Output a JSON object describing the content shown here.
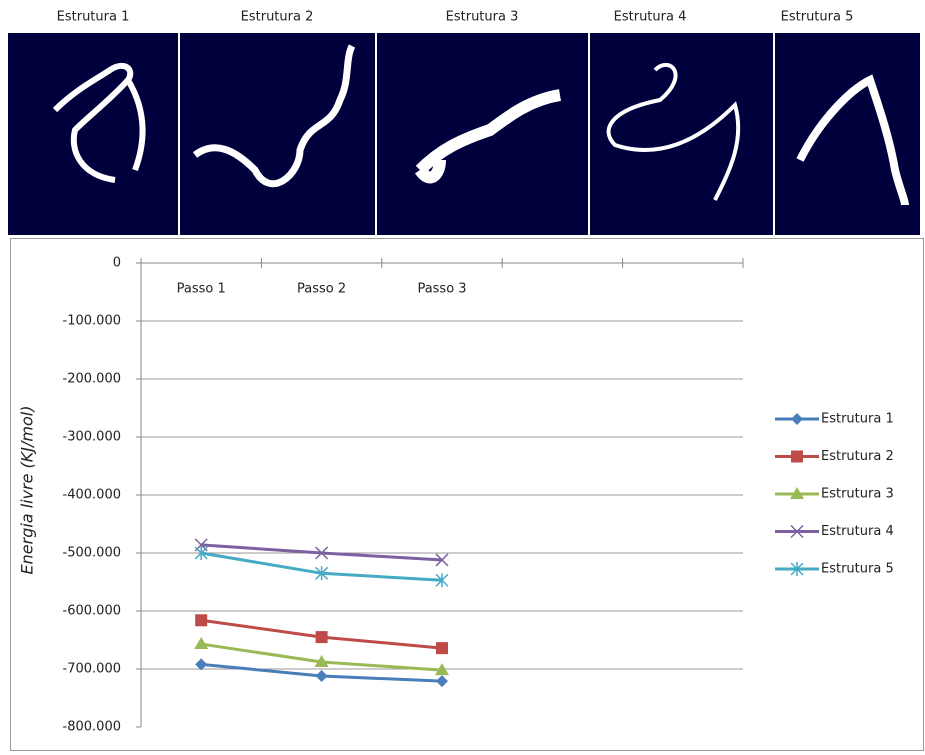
{
  "panels": [
    "Estrutura 1",
    "Estrutura 2",
    "Estrutura 3",
    "Estrutura 4",
    "Estrutura 5"
  ],
  "chart_data": {
    "type": "line",
    "y_label": "Energia livre (KJ/mol)",
    "categories": [
      "Passo 1",
      "Passo 2",
      "Passo 3",
      null,
      null
    ],
    "ylim": [
      -800000,
      0
    ],
    "yticks": [
      {
        "value": -800000,
        "label": "-800.000"
      },
      {
        "value": -700000,
        "label": "-700.000"
      },
      {
        "value": -600000,
        "label": "-600.000"
      },
      {
        "value": -500000,
        "label": "-500.000"
      },
      {
        "value": -400000,
        "label": "-400.000"
      },
      {
        "value": -300000,
        "label": "-300.000"
      },
      {
        "value": -200000,
        "label": "-200.000"
      },
      {
        "value": -100000,
        "label": "-100.000"
      },
      0
    ],
    "grid": true,
    "legend": "right",
    "series": [
      {
        "name": "Estrutura 1",
        "color": "#4a7ebb",
        "marker": "diamond",
        "values": [
          -692000,
          -712000,
          -721000,
          null,
          null
        ]
      },
      {
        "name": "Estrutura 2",
        "color": "#be4b48",
        "marker": "square",
        "values": [
          -616000,
          -645000,
          -664000,
          null,
          null
        ]
      },
      {
        "name": "Estrutura 3",
        "color": "#98b954",
        "marker": "triangle",
        "values": [
          -657000,
          -688000,
          -702000,
          null,
          null
        ]
      },
      {
        "name": "Estrutura 4",
        "color": "#7d60a0",
        "marker": "x",
        "values": [
          -486000,
          -500000,
          -512000,
          null,
          null
        ]
      },
      {
        "name": "Estrutura 5",
        "color": "#46aac5",
        "marker": "star",
        "values": [
          -500000,
          -535000,
          -547000,
          null,
          null
        ]
      }
    ]
  }
}
